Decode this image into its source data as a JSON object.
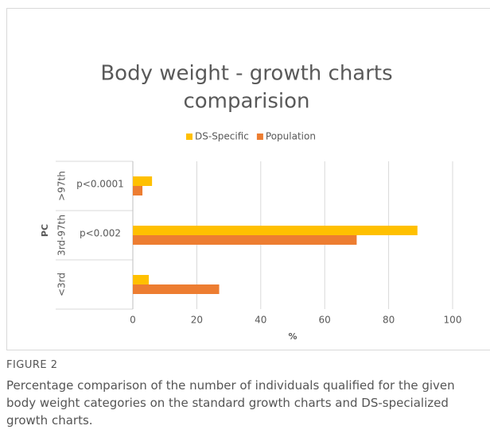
{
  "chart_data": {
    "type": "hbar",
    "title": [
      "Body weight - growth charts",
      "comparision"
    ],
    "categories": [
      ">97th",
      "3rd-97th",
      "<3rd"
    ],
    "annotations": [
      "p<0.0001",
      "p<0.002",
      null
    ],
    "series": [
      {
        "name": "DS-Specific",
        "color": "#ffc000",
        "values": [
          6,
          89,
          5
        ]
      },
      {
        "name": "Population",
        "color": "#ed7d31",
        "values": [
          3,
          70,
          27
        ]
      }
    ],
    "xlabel": "%",
    "ylabel": "PC",
    "xlim": [
      0,
      100
    ],
    "xticks": [
      0,
      20,
      40,
      60,
      80,
      100
    ],
    "grid": true,
    "legend": "top"
  },
  "figure": {
    "label": "FIGURE 2",
    "caption": "Percentage comparison of the number of individuals qualified for the given body weight categories on the standard growth charts and DS-specialized growth charts."
  }
}
